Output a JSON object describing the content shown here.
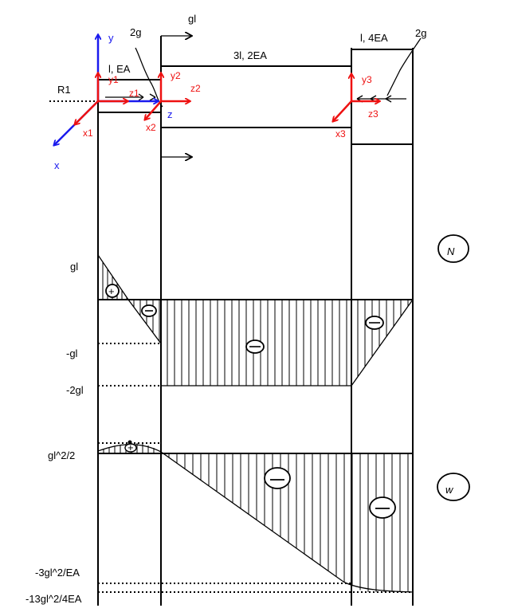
{
  "loads": {
    "force_top": "gl",
    "force_2g_left": "2g",
    "force_2g_right": "2g",
    "reaction": "R1"
  },
  "segments": {
    "seg1": "l, EA",
    "seg2": "3l, 2EA",
    "seg3": "l, 4EA"
  },
  "axes": {
    "global_y": "y",
    "global_z": "z",
    "global_x": "x",
    "y1": "y1",
    "z1": "z1",
    "x1": "x1",
    "y2": "y2",
    "z2": "z2",
    "x2": "x2",
    "y3": "y3",
    "z3": "z3",
    "x3": "x3"
  },
  "normal_force": {
    "symbol": "N",
    "value_top": "gl",
    "value_mid": "-gl",
    "value_low": "-2gl",
    "sign_plus": "+",
    "sign_minus": "-"
  },
  "displacement": {
    "symbol": "w",
    "value_top": "gl^2/2",
    "value_mid": "-3gl^2/EA",
    "value_low": "-13gl^2/4EA",
    "sign_plus": "+",
    "sign_minus": "-"
  },
  "colors": {
    "local_axes": "#ee1111",
    "global_axes": "#1a1aee",
    "lines": "#000000"
  }
}
